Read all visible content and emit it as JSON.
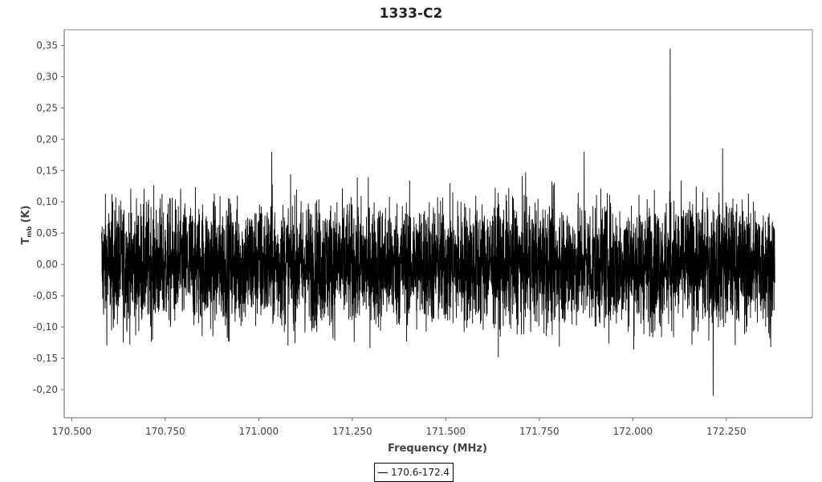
{
  "chart_data": {
    "type": "line",
    "title": "1333-C2",
    "xlabel": "Frequency (MHz)",
    "ylabel_main": "T",
    "ylabel_sub": "mb",
    "ylabel_unit": "(K)",
    "xlim": [
      170.48,
      172.48
    ],
    "ylim": [
      -0.245,
      0.375
    ],
    "x_ticks": [
      "170.500",
      "170.750",
      "171.000",
      "171.250",
      "171.500",
      "171.750",
      "172.000",
      "172.250"
    ],
    "x_tick_values": [
      170.5,
      170.75,
      171.0,
      171.25,
      171.5,
      171.75,
      172.0,
      172.25
    ],
    "y_ticks": [
      "0,35",
      "0,30",
      "0,25",
      "0,20",
      "0,15",
      "0,10",
      "0,05",
      "0,00",
      "-0,05",
      "-0,10",
      "-0,15",
      "-0,20"
    ],
    "y_tick_values": [
      0.35,
      0.3,
      0.25,
      0.2,
      0.15,
      0.1,
      0.05,
      0.0,
      -0.05,
      -0.1,
      -0.15,
      -0.2
    ],
    "grid": false,
    "legend_placement": "bottom-center",
    "series": [
      {
        "name": "170.6-172.4",
        "color": "#000000",
        "x_range": [
          170.58,
          172.38
        ],
        "noise_rms": 0.05,
        "typical_range": [
          -0.13,
          0.13
        ],
        "features": [
          {
            "x": 172.1,
            "y": 0.345
          },
          {
            "x": 172.215,
            "y": -0.21
          },
          {
            "x": 171.035,
            "y": 0.18
          },
          {
            "x": 171.87,
            "y": 0.18
          },
          {
            "x": 172.24,
            "y": 0.185
          }
        ]
      }
    ]
  }
}
